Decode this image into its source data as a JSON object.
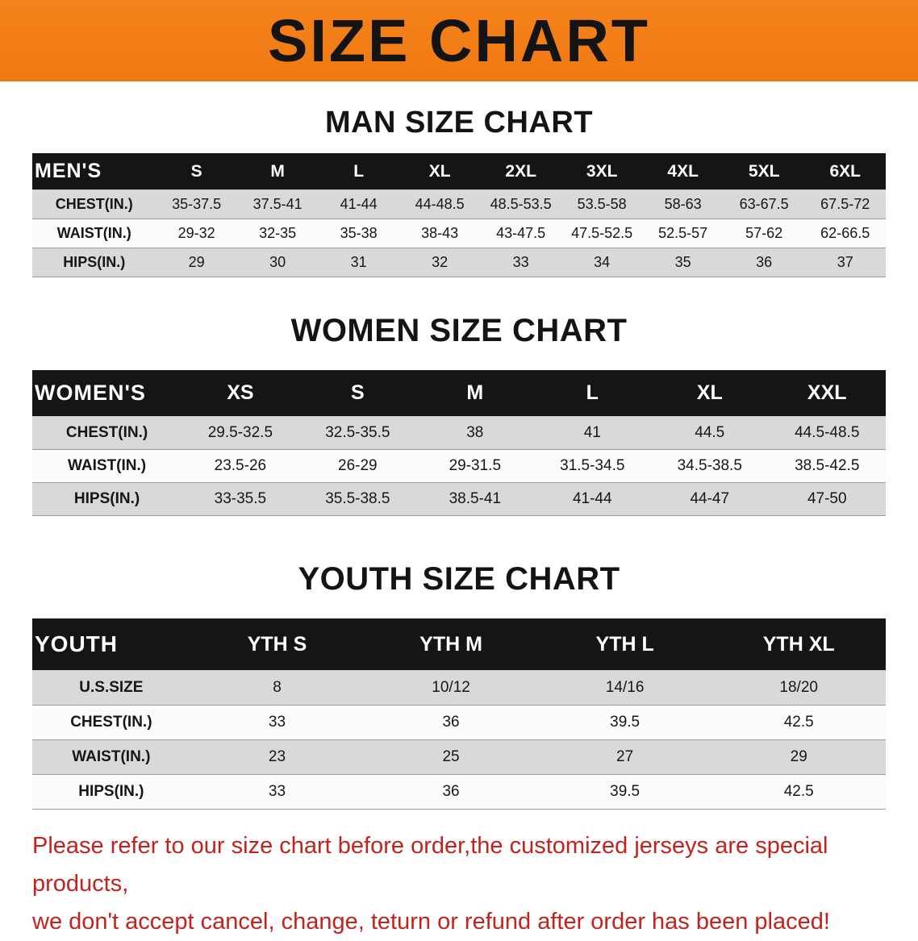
{
  "banner": {
    "title": "SIZE CHART"
  },
  "colors": {
    "banner_bg": "#f5821c",
    "banner_text": "#141414",
    "table_header_bg": "#151515",
    "table_header_text": "#ffffff",
    "row_stripe_gray": "#d9d9d9",
    "row_stripe_white": "#fcfcfc",
    "note_red": "#c4231d"
  },
  "chart_data": [
    {
      "type": "table",
      "title": "MAN SIZE CHART",
      "corner_label": "MEN'S",
      "columns": [
        "S",
        "M",
        "L",
        "XL",
        "2XL",
        "3XL",
        "4XL",
        "5XL",
        "6XL"
      ],
      "rows": [
        {
          "label": "CHEST(IN.)",
          "values": [
            "35-37.5",
            "37.5-41",
            "41-44",
            "44-48.5",
            "48.5-53.5",
            "53.5-58",
            "58-63",
            "63-67.5",
            "67.5-72"
          ]
        },
        {
          "label": "WAIST(IN.)",
          "values": [
            "29-32",
            "32-35",
            "35-38",
            "38-43",
            "43-47.5",
            "47.5-52.5",
            "52.5-57",
            "57-62",
            "62-66.5"
          ]
        },
        {
          "label": "HIPS(IN.)",
          "values": [
            "29",
            "30",
            "31",
            "32",
            "33",
            "34",
            "35",
            "36",
            "37"
          ]
        }
      ]
    },
    {
      "type": "table",
      "title": "WOMEN SIZE CHART",
      "corner_label": "WOMEN'S",
      "columns": [
        "XS",
        "S",
        "M",
        "L",
        "XL",
        "XXL"
      ],
      "rows": [
        {
          "label": "CHEST(IN.)",
          "values": [
            "29.5-32.5",
            "32.5-35.5",
            "38",
            "41",
            "44.5",
            "44.5-48.5"
          ]
        },
        {
          "label": "WAIST(IN.)",
          "values": [
            "23.5-26",
            "26-29",
            "29-31.5",
            "31.5-34.5",
            "34.5-38.5",
            "38.5-42.5"
          ]
        },
        {
          "label": "HIPS(IN.)",
          "values": [
            "33-35.5",
            "35.5-38.5",
            "38.5-41",
            "41-44",
            "44-47",
            "47-50"
          ]
        }
      ]
    },
    {
      "type": "table",
      "title": "YOUTH SIZE CHART",
      "corner_label": "YOUTH",
      "columns": [
        "YTH S",
        "YTH M",
        "YTH L",
        "YTH XL"
      ],
      "rows": [
        {
          "label": "U.S.SIZE",
          "values": [
            "8",
            "10/12",
            "14/16",
            "18/20"
          ]
        },
        {
          "label": "CHEST(IN.)",
          "values": [
            "33",
            "36",
            "39.5",
            "42.5"
          ]
        },
        {
          "label": "WAIST(IN.)",
          "values": [
            "23",
            "25",
            "27",
            "29"
          ]
        },
        {
          "label": "HIPS(IN.)",
          "values": [
            "33",
            "36",
            "39.5",
            "42.5"
          ]
        }
      ]
    }
  ],
  "note": {
    "line1": "Please refer to our size chart before order,the customized jerseys are special products,",
    "line2": "we don't accept cancel, change, teturn or refund after order has been placed!"
  }
}
